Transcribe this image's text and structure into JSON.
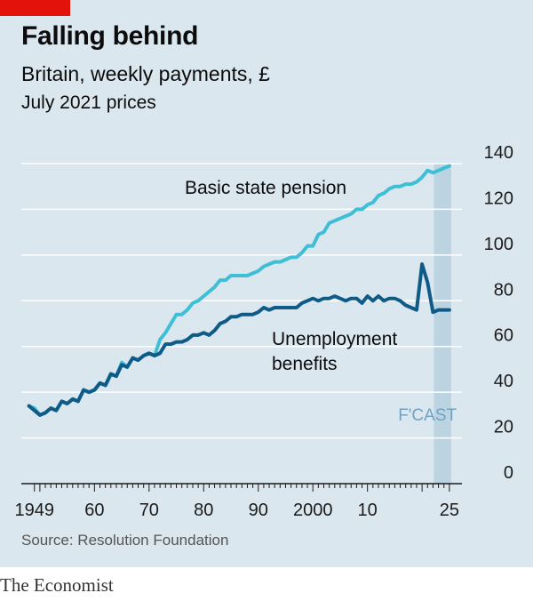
{
  "header": {
    "title": "Falling behind",
    "subtitle": "Britain, weekly payments, £",
    "subtitle2": "July 2021 prices"
  },
  "footer": {
    "source": "Source: Resolution Foundation",
    "brand": "The Economist"
  },
  "colors": {
    "panel": "#dbe7ef",
    "pension": "#3fbfd6",
    "unemployment": "#0f5b87",
    "forecast_band": "#bcd3e2",
    "brand_red": "#e3120b"
  },
  "chart_data": {
    "type": "line",
    "title": "Falling behind",
    "subtitle": "Britain, weekly payments, £",
    "note": "July 2021 prices",
    "xlim": [
      1949,
      2025
    ],
    "ylim": [
      0,
      140
    ],
    "y_ticks": [
      0,
      20,
      40,
      60,
      80,
      100,
      120,
      140
    ],
    "y_axis_side": "right",
    "grid": true,
    "x_ticks": [
      {
        "value": 1949,
        "label": "1949"
      },
      {
        "value": 1960,
        "label": "60"
      },
      {
        "value": 1970,
        "label": "70"
      },
      {
        "value": 1980,
        "label": "80"
      },
      {
        "value": 1990,
        "label": "90"
      },
      {
        "value": 2000,
        "label": "2000"
      },
      {
        "value": 2010,
        "label": "10"
      },
      {
        "value": 2025,
        "label": "25"
      }
    ],
    "forecast": {
      "label": "F'CAST",
      "from": 2022,
      "to": 2025
    },
    "series": [
      {
        "name": "Basic state pension",
        "color": "#3fbfd6",
        "points": [
          [
            1948,
            34
          ],
          [
            1949,
            33
          ],
          [
            1950,
            30
          ],
          [
            1951,
            31
          ],
          [
            1952,
            33
          ],
          [
            1953,
            32
          ],
          [
            1954,
            36
          ],
          [
            1955,
            35
          ],
          [
            1956,
            37
          ],
          [
            1957,
            36
          ],
          [
            1958,
            41
          ],
          [
            1959,
            40
          ],
          [
            1960,
            41
          ],
          [
            1961,
            44
          ],
          [
            1962,
            43
          ],
          [
            1963,
            48
          ],
          [
            1964,
            47
          ],
          [
            1965,
            53
          ],
          [
            1966,
            51
          ],
          [
            1967,
            55
          ],
          [
            1968,
            54
          ],
          [
            1969,
            56
          ],
          [
            1970,
            57
          ],
          [
            1971,
            56
          ],
          [
            1972,
            63
          ],
          [
            1973,
            66
          ],
          [
            1974,
            70
          ],
          [
            1975,
            74
          ],
          [
            1976,
            74
          ],
          [
            1977,
            76
          ],
          [
            1978,
            79
          ],
          [
            1979,
            80
          ],
          [
            1980,
            82
          ],
          [
            1981,
            84
          ],
          [
            1982,
            86
          ],
          [
            1983,
            89
          ],
          [
            1984,
            89
          ],
          [
            1985,
            91
          ],
          [
            1986,
            91
          ],
          [
            1987,
            91
          ],
          [
            1988,
            91
          ],
          [
            1989,
            92
          ],
          [
            1990,
            93
          ],
          [
            1991,
            95
          ],
          [
            1992,
            96
          ],
          [
            1993,
            97
          ],
          [
            1994,
            97
          ],
          [
            1995,
            98
          ],
          [
            1996,
            99
          ],
          [
            1997,
            99
          ],
          [
            1998,
            101
          ],
          [
            1999,
            104
          ],
          [
            2000,
            104
          ],
          [
            2001,
            109
          ],
          [
            2002,
            110
          ],
          [
            2003,
            114
          ],
          [
            2004,
            115
          ],
          [
            2005,
            116
          ],
          [
            2006,
            117
          ],
          [
            2007,
            118
          ],
          [
            2008,
            120
          ],
          [
            2009,
            120
          ],
          [
            2010,
            122
          ],
          [
            2011,
            123
          ],
          [
            2012,
            126
          ],
          [
            2013,
            127
          ],
          [
            2014,
            129
          ],
          [
            2015,
            130
          ],
          [
            2016,
            130
          ],
          [
            2017,
            131
          ],
          [
            2018,
            131
          ],
          [
            2019,
            132
          ],
          [
            2020,
            134
          ],
          [
            2021,
            137
          ],
          [
            2022,
            136
          ],
          [
            2023,
            137
          ],
          [
            2024,
            138
          ],
          [
            2025,
            139
          ]
        ]
      },
      {
        "name": "Unemployment benefits",
        "color": "#0f5b87",
        "points": [
          [
            1948,
            34
          ],
          [
            1949,
            32
          ],
          [
            1950,
            30
          ],
          [
            1951,
            31
          ],
          [
            1952,
            33
          ],
          [
            1953,
            32
          ],
          [
            1954,
            36
          ],
          [
            1955,
            35
          ],
          [
            1956,
            37
          ],
          [
            1957,
            36
          ],
          [
            1958,
            41
          ],
          [
            1959,
            40
          ],
          [
            1960,
            41
          ],
          [
            1961,
            44
          ],
          [
            1962,
            43
          ],
          [
            1963,
            48
          ],
          [
            1964,
            47
          ],
          [
            1965,
            52
          ],
          [
            1966,
            51
          ],
          [
            1967,
            55
          ],
          [
            1968,
            54
          ],
          [
            1969,
            56
          ],
          [
            1970,
            57
          ],
          [
            1971,
            56
          ],
          [
            1972,
            57
          ],
          [
            1973,
            61
          ],
          [
            1974,
            61
          ],
          [
            1975,
            62
          ],
          [
            1976,
            62
          ],
          [
            1977,
            63
          ],
          [
            1978,
            65
          ],
          [
            1979,
            65
          ],
          [
            1980,
            66
          ],
          [
            1981,
            65
          ],
          [
            1982,
            67
          ],
          [
            1983,
            70
          ],
          [
            1984,
            71
          ],
          [
            1985,
            73
          ],
          [
            1986,
            73
          ],
          [
            1987,
            74
          ],
          [
            1988,
            74
          ],
          [
            1989,
            74
          ],
          [
            1990,
            75
          ],
          [
            1991,
            77
          ],
          [
            1992,
            76
          ],
          [
            1993,
            77
          ],
          [
            1994,
            77
          ],
          [
            1995,
            77
          ],
          [
            1996,
            77
          ],
          [
            1997,
            77
          ],
          [
            1998,
            79
          ],
          [
            1999,
            80
          ],
          [
            2000,
            81
          ],
          [
            2001,
            80
          ],
          [
            2002,
            81
          ],
          [
            2003,
            81
          ],
          [
            2004,
            82
          ],
          [
            2005,
            81
          ],
          [
            2006,
            80
          ],
          [
            2007,
            81
          ],
          [
            2008,
            81
          ],
          [
            2009,
            79
          ],
          [
            2010,
            82
          ],
          [
            2011,
            80
          ],
          [
            2012,
            82
          ],
          [
            2013,
            80
          ],
          [
            2014,
            81
          ],
          [
            2015,
            81
          ],
          [
            2016,
            80
          ],
          [
            2017,
            78
          ],
          [
            2018,
            77
          ],
          [
            2019,
            76
          ],
          [
            2020,
            96
          ],
          [
            2021,
            88
          ],
          [
            2022,
            75
          ],
          [
            2023,
            76
          ],
          [
            2024,
            76
          ],
          [
            2025,
            76
          ]
        ]
      }
    ],
    "annotations": [
      {
        "text": "Basic state pension",
        "series": 0
      },
      {
        "text": "Unemployment",
        "series": 1
      },
      {
        "text": "benefits",
        "series": 1
      }
    ]
  }
}
